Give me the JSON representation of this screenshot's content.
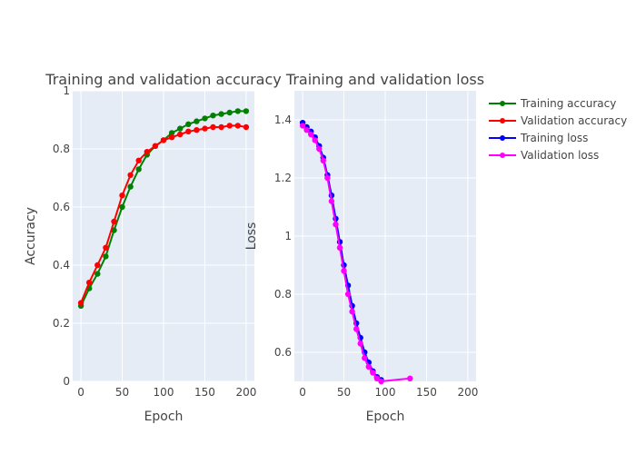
{
  "chart_data": [
    {
      "type": "line",
      "title": "Training and validation accuracy",
      "xlabel": "Epoch",
      "ylabel": "Accuracy",
      "xlim": [
        -10,
        210
      ],
      "ylim": [
        0,
        1
      ],
      "xticks": [
        0,
        50,
        100,
        150,
        200
      ],
      "yticks": [
        0,
        0.2,
        0.4,
        0.6,
        0.8,
        1
      ],
      "grid": true,
      "series": [
        {
          "name": "Training accuracy",
          "color": "#008000",
          "x": [
            0,
            10,
            20,
            30,
            40,
            50,
            60,
            70,
            80,
            90,
            100,
            110,
            120,
            130,
            140,
            150,
            160,
            170,
            180,
            190,
            200
          ],
          "y": [
            0.26,
            0.32,
            0.37,
            0.43,
            0.52,
            0.6,
            0.67,
            0.73,
            0.78,
            0.81,
            0.83,
            0.855,
            0.87,
            0.885,
            0.895,
            0.905,
            0.915,
            0.92,
            0.925,
            0.93,
            0.93
          ]
        },
        {
          "name": "Validation accuracy",
          "color": "#ff0000",
          "x": [
            0,
            10,
            20,
            30,
            40,
            50,
            60,
            70,
            80,
            90,
            100,
            110,
            120,
            130,
            140,
            150,
            160,
            170,
            180,
            190,
            200
          ],
          "y": [
            0.27,
            0.34,
            0.4,
            0.46,
            0.55,
            0.64,
            0.71,
            0.76,
            0.79,
            0.81,
            0.83,
            0.84,
            0.85,
            0.86,
            0.865,
            0.87,
            0.875,
            0.875,
            0.88,
            0.88,
            0.875
          ]
        }
      ]
    },
    {
      "type": "line",
      "title": "Training and validation loss",
      "xlabel": "Epoch",
      "ylabel": "Loss",
      "xlim": [
        -10,
        210
      ],
      "ylim": [
        0.5,
        1.5
      ],
      "xticks": [
        0,
        50,
        100,
        150,
        200
      ],
      "yticks": [
        0.6,
        0.8,
        1,
        1.2,
        1.4
      ],
      "grid": true,
      "series": [
        {
          "name": "Training loss",
          "color": "#0000ff",
          "x": [
            0,
            5,
            10,
            15,
            20,
            25,
            30,
            35,
            40,
            45,
            50,
            55,
            60,
            65,
            70,
            75,
            80,
            85,
            90,
            95
          ],
          "y": [
            1.39,
            1.375,
            1.36,
            1.34,
            1.31,
            1.27,
            1.21,
            1.14,
            1.06,
            0.98,
            0.9,
            0.83,
            0.76,
            0.7,
            0.65,
            0.6,
            0.565,
            0.535,
            0.515,
            0.505
          ]
        },
        {
          "name": "Validation loss",
          "color": "#ff00ff",
          "x": [
            0,
            5,
            10,
            15,
            20,
            25,
            30,
            35,
            40,
            45,
            50,
            55,
            60,
            65,
            70,
            75,
            80,
            85,
            90,
            95,
            130
          ],
          "y": [
            1.38,
            1.365,
            1.35,
            1.33,
            1.3,
            1.26,
            1.2,
            1.12,
            1.04,
            0.96,
            0.88,
            0.8,
            0.74,
            0.68,
            0.63,
            0.58,
            0.55,
            0.53,
            0.51,
            0.5,
            0.51
          ]
        }
      ]
    }
  ],
  "legend": {
    "placement": "top-right",
    "items": [
      "Training accuracy",
      "Validation accuracy",
      "Training loss",
      "Validation loss"
    ]
  }
}
